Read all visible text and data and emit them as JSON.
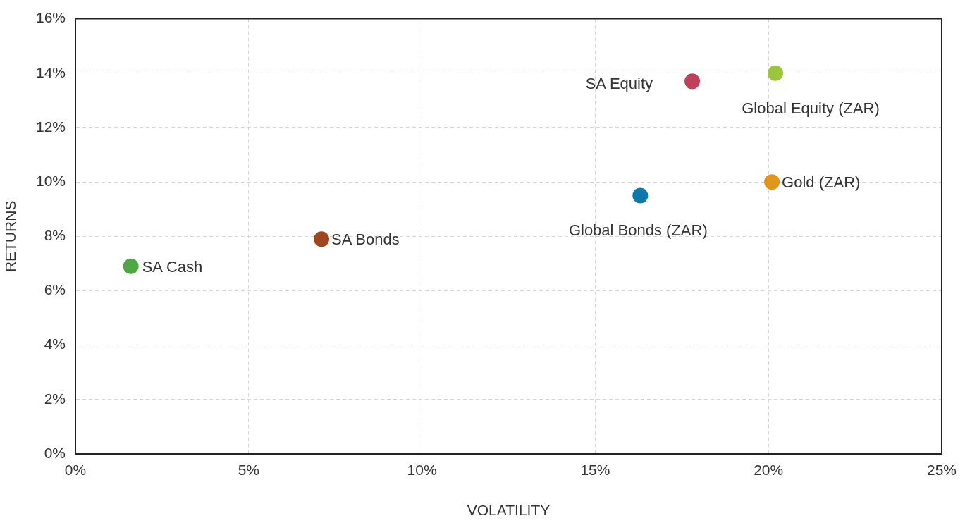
{
  "chart_data": {
    "type": "scatter",
    "xlabel": "VOLATILITY",
    "ylabel": "RETURNS",
    "xlim": [
      0,
      25
    ],
    "xticks": [
      {
        "value": 0,
        "label": "0%"
      },
      {
        "value": 5,
        "label": "5%"
      },
      {
        "value": 10,
        "label": "10%"
      },
      {
        "value": 15,
        "label": "15%"
      },
      {
        "value": 20,
        "label": "20%"
      },
      {
        "value": 25,
        "label": "25%"
      }
    ],
    "ylim": [
      0,
      16
    ],
    "yticks": [
      {
        "value": 0,
        "label": "0%"
      },
      {
        "value": 2,
        "label": "2%"
      },
      {
        "value": 4,
        "label": "4%"
      },
      {
        "value": 6,
        "label": "6%"
      },
      {
        "value": 8,
        "label": "8%"
      },
      {
        "value": 10,
        "label": "10%"
      },
      {
        "value": 12,
        "label": "12%"
      },
      {
        "value": 14,
        "label": "14%"
      },
      {
        "value": 16,
        "label": "16%"
      }
    ],
    "grid": true,
    "legend": false,
    "marker": "circle",
    "series": [
      {
        "name": "SA Cash",
        "color": "#4ea843",
        "x": [
          1.6
        ],
        "values": [
          6.9
        ]
      },
      {
        "name": "SA Bonds",
        "color": "#a0461e",
        "x": [
          7.1
        ],
        "values": [
          7.9
        ]
      },
      {
        "name": "SA Equity",
        "color": "#c0405a",
        "x": [
          17.8
        ],
        "values": [
          13.7
        ]
      },
      {
        "name": "Global Equity (ZAR)",
        "color": "#9bc53d",
        "x": [
          20.2
        ],
        "values": [
          14.0
        ]
      },
      {
        "name": "Gold (ZAR)",
        "color": "#e0961e",
        "x": [
          20.1
        ],
        "values": [
          10.0
        ]
      },
      {
        "name": "Global Bonds (ZAR)",
        "color": "#0e78aa",
        "x": [
          16.3
        ],
        "values": [
          9.5
        ]
      }
    ]
  }
}
